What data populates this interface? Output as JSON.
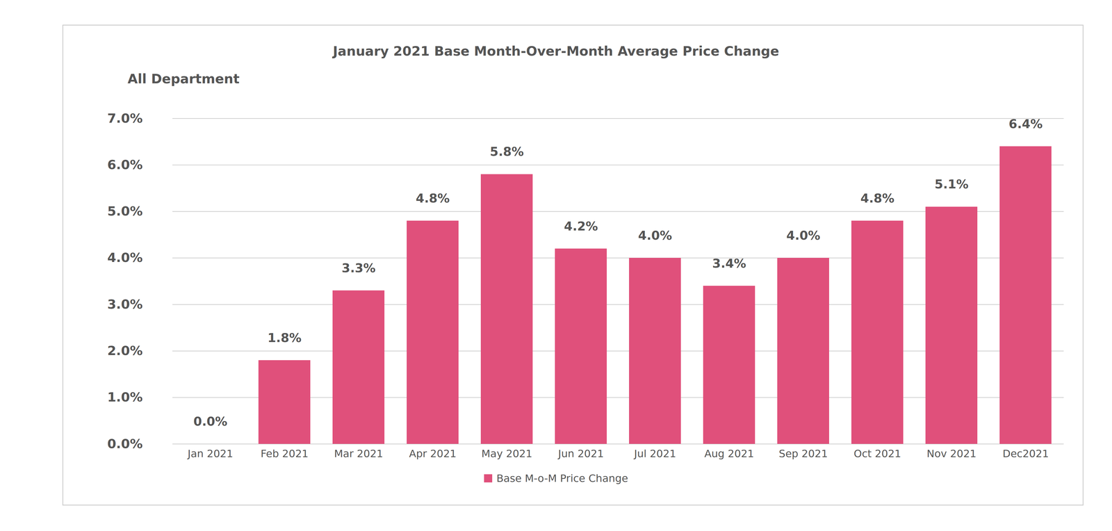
{
  "chart_data": {
    "type": "bar",
    "title": "January 2021 Base Month-Over-Month Average Price Change",
    "subtitle": "All Department",
    "categories": [
      "Jan 2021",
      "Feb 2021",
      "Mar 2021",
      "Apr 2021",
      "May 2021",
      "Jun 2021",
      "Jul 2021",
      "Aug 2021",
      "Sep 2021",
      "Oct 2021",
      "Nov 2021",
      "Dec2021"
    ],
    "series": [
      {
        "name": "Base M-o-M Price Change",
        "color": "#e0507b",
        "values": [
          0.0,
          1.8,
          3.3,
          4.8,
          5.8,
          4.2,
          4.0,
          3.4,
          4.0,
          4.8,
          5.1,
          6.4
        ],
        "value_labels": [
          "0.0%",
          "1.8%",
          "3.3%",
          "4.8%",
          "5.8%",
          "4.2%",
          "4.0%",
          "3.4%",
          "4.0%",
          "4.8%",
          "5.1%",
          "6.4%"
        ]
      }
    ],
    "ylim": [
      0,
      7
    ],
    "yticks": [
      {
        "value": 0,
        "label": "0.0%"
      },
      {
        "value": 1,
        "label": "1.0%"
      },
      {
        "value": 2,
        "label": "2.0%"
      },
      {
        "value": 3,
        "label": "3.0%"
      },
      {
        "value": 4,
        "label": "4.0%"
      },
      {
        "value": 5,
        "label": "5.0%"
      },
      {
        "value": 6,
        "label": "6.0%"
      },
      {
        "value": 7,
        "label": "7.0%"
      }
    ],
    "grid": true,
    "data_labels": true,
    "legend": "bottom"
  }
}
